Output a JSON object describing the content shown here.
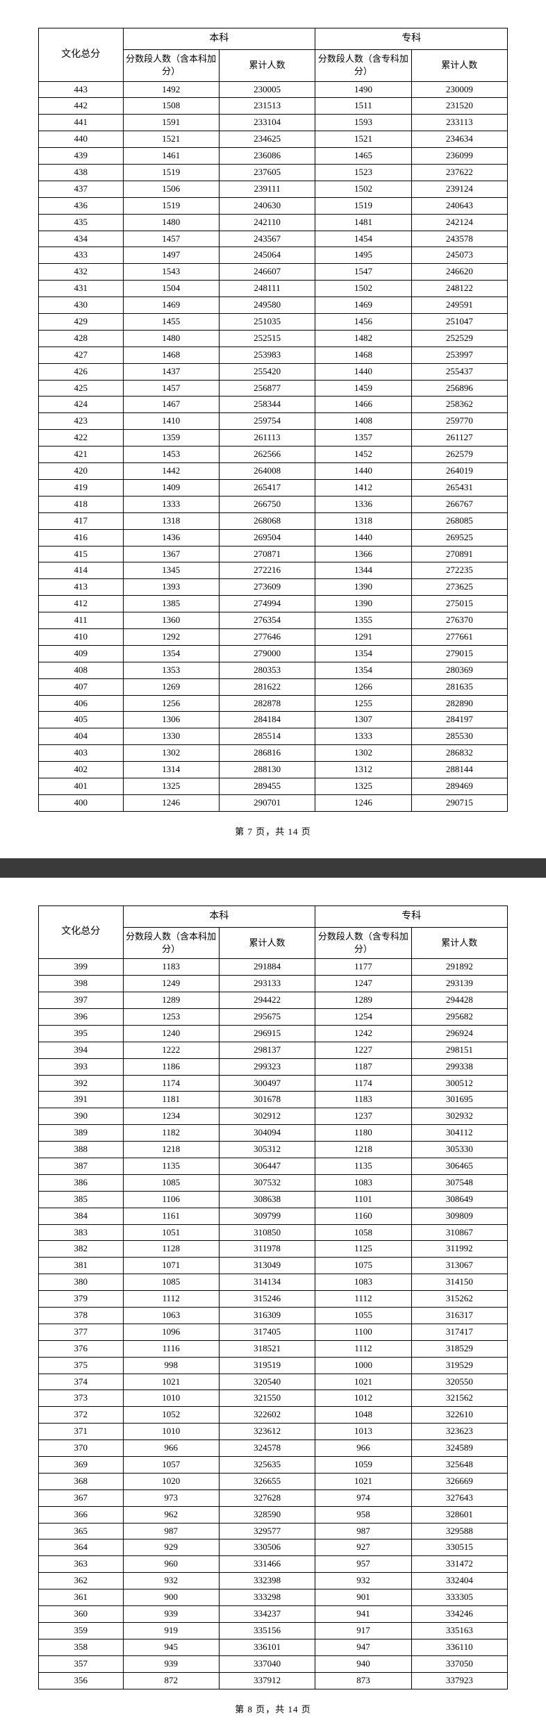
{
  "headers": {
    "score": "文化总分",
    "benke": "本科",
    "zhuanke": "专科",
    "benke_count": "分数段人数（含本科加分）",
    "benke_cum": "累计人数",
    "zhuanke_count": "分数段人数（含专科加分）",
    "zhuanke_cum": "累计人数"
  },
  "page7": {
    "footer": "第 7 页，共 14 页",
    "rows": [
      [
        443,
        1492,
        230005,
        1490,
        230009
      ],
      [
        442,
        1508,
        231513,
        1511,
        231520
      ],
      [
        441,
        1591,
        233104,
        1593,
        233113
      ],
      [
        440,
        1521,
        234625,
        1521,
        234634
      ],
      [
        439,
        1461,
        236086,
        1465,
        236099
      ],
      [
        438,
        1519,
        237605,
        1523,
        237622
      ],
      [
        437,
        1506,
        239111,
        1502,
        239124
      ],
      [
        436,
        1519,
        240630,
        1519,
        240643
      ],
      [
        435,
        1480,
        242110,
        1481,
        242124
      ],
      [
        434,
        1457,
        243567,
        1454,
        243578
      ],
      [
        433,
        1497,
        245064,
        1495,
        245073
      ],
      [
        432,
        1543,
        246607,
        1547,
        246620
      ],
      [
        431,
        1504,
        248111,
        1502,
        248122
      ],
      [
        430,
        1469,
        249580,
        1469,
        249591
      ],
      [
        429,
        1455,
        251035,
        1456,
        251047
      ],
      [
        428,
        1480,
        252515,
        1482,
        252529
      ],
      [
        427,
        1468,
        253983,
        1468,
        253997
      ],
      [
        426,
        1437,
        255420,
        1440,
        255437
      ],
      [
        425,
        1457,
        256877,
        1459,
        256896
      ],
      [
        424,
        1467,
        258344,
        1466,
        258362
      ],
      [
        423,
        1410,
        259754,
        1408,
        259770
      ],
      [
        422,
        1359,
        261113,
        1357,
        261127
      ],
      [
        421,
        1453,
        262566,
        1452,
        262579
      ],
      [
        420,
        1442,
        264008,
        1440,
        264019
      ],
      [
        419,
        1409,
        265417,
        1412,
        265431
      ],
      [
        418,
        1333,
        266750,
        1336,
        266767
      ],
      [
        417,
        1318,
        268068,
        1318,
        268085
      ],
      [
        416,
        1436,
        269504,
        1440,
        269525
      ],
      [
        415,
        1367,
        270871,
        1366,
        270891
      ],
      [
        414,
        1345,
        272216,
        1344,
        272235
      ],
      [
        413,
        1393,
        273609,
        1390,
        273625
      ],
      [
        412,
        1385,
        274994,
        1390,
        275015
      ],
      [
        411,
        1360,
        276354,
        1355,
        276370
      ],
      [
        410,
        1292,
        277646,
        1291,
        277661
      ],
      [
        409,
        1354,
        279000,
        1354,
        279015
      ],
      [
        408,
        1353,
        280353,
        1354,
        280369
      ],
      [
        407,
        1269,
        281622,
        1266,
        281635
      ],
      [
        406,
        1256,
        282878,
        1255,
        282890
      ],
      [
        405,
        1306,
        284184,
        1307,
        284197
      ],
      [
        404,
        1330,
        285514,
        1333,
        285530
      ],
      [
        403,
        1302,
        286816,
        1302,
        286832
      ],
      [
        402,
        1314,
        288130,
        1312,
        288144
      ],
      [
        401,
        1325,
        289455,
        1325,
        289469
      ],
      [
        400,
        1246,
        290701,
        1246,
        290715
      ]
    ]
  },
  "page8": {
    "footer": "第 8 页，共 14 页",
    "rows": [
      [
        399,
        1183,
        291884,
        1177,
        291892
      ],
      [
        398,
        1249,
        293133,
        1247,
        293139
      ],
      [
        397,
        1289,
        294422,
        1289,
        294428
      ],
      [
        396,
        1253,
        295675,
        1254,
        295682
      ],
      [
        395,
        1240,
        296915,
        1242,
        296924
      ],
      [
        394,
        1222,
        298137,
        1227,
        298151
      ],
      [
        393,
        1186,
        299323,
        1187,
        299338
      ],
      [
        392,
        1174,
        300497,
        1174,
        300512
      ],
      [
        391,
        1181,
        301678,
        1183,
        301695
      ],
      [
        390,
        1234,
        302912,
        1237,
        302932
      ],
      [
        389,
        1182,
        304094,
        1180,
        304112
      ],
      [
        388,
        1218,
        305312,
        1218,
        305330
      ],
      [
        387,
        1135,
        306447,
        1135,
        306465
      ],
      [
        386,
        1085,
        307532,
        1083,
        307548
      ],
      [
        385,
        1106,
        308638,
        1101,
        308649
      ],
      [
        384,
        1161,
        309799,
        1160,
        309809
      ],
      [
        383,
        1051,
        310850,
        1058,
        310867
      ],
      [
        382,
        1128,
        311978,
        1125,
        311992
      ],
      [
        381,
        1071,
        313049,
        1075,
        313067
      ],
      [
        380,
        1085,
        314134,
        1083,
        314150
      ],
      [
        379,
        1112,
        315246,
        1112,
        315262
      ],
      [
        378,
        1063,
        316309,
        1055,
        316317
      ],
      [
        377,
        1096,
        317405,
        1100,
        317417
      ],
      [
        376,
        1116,
        318521,
        1112,
        318529
      ],
      [
        375,
        998,
        319519,
        1000,
        319529
      ],
      [
        374,
        1021,
        320540,
        1021,
        320550
      ],
      [
        373,
        1010,
        321550,
        1012,
        321562
      ],
      [
        372,
        1052,
        322602,
        1048,
        322610
      ],
      [
        371,
        1010,
        323612,
        1013,
        323623
      ],
      [
        370,
        966,
        324578,
        966,
        324589
      ],
      [
        369,
        1057,
        325635,
        1059,
        325648
      ],
      [
        368,
        1020,
        326655,
        1021,
        326669
      ],
      [
        367,
        973,
        327628,
        974,
        327643
      ],
      [
        366,
        962,
        328590,
        958,
        328601
      ],
      [
        365,
        987,
        329577,
        987,
        329588
      ],
      [
        364,
        929,
        330506,
        927,
        330515
      ],
      [
        363,
        960,
        331466,
        957,
        331472
      ],
      [
        362,
        932,
        332398,
        932,
        332404
      ],
      [
        361,
        900,
        333298,
        901,
        333305
      ],
      [
        360,
        939,
        334237,
        941,
        334246
      ],
      [
        359,
        919,
        335156,
        917,
        335163
      ],
      [
        358,
        945,
        336101,
        947,
        336110
      ],
      [
        357,
        939,
        337040,
        940,
        337050
      ],
      [
        356,
        872,
        337912,
        873,
        337923
      ]
    ]
  }
}
